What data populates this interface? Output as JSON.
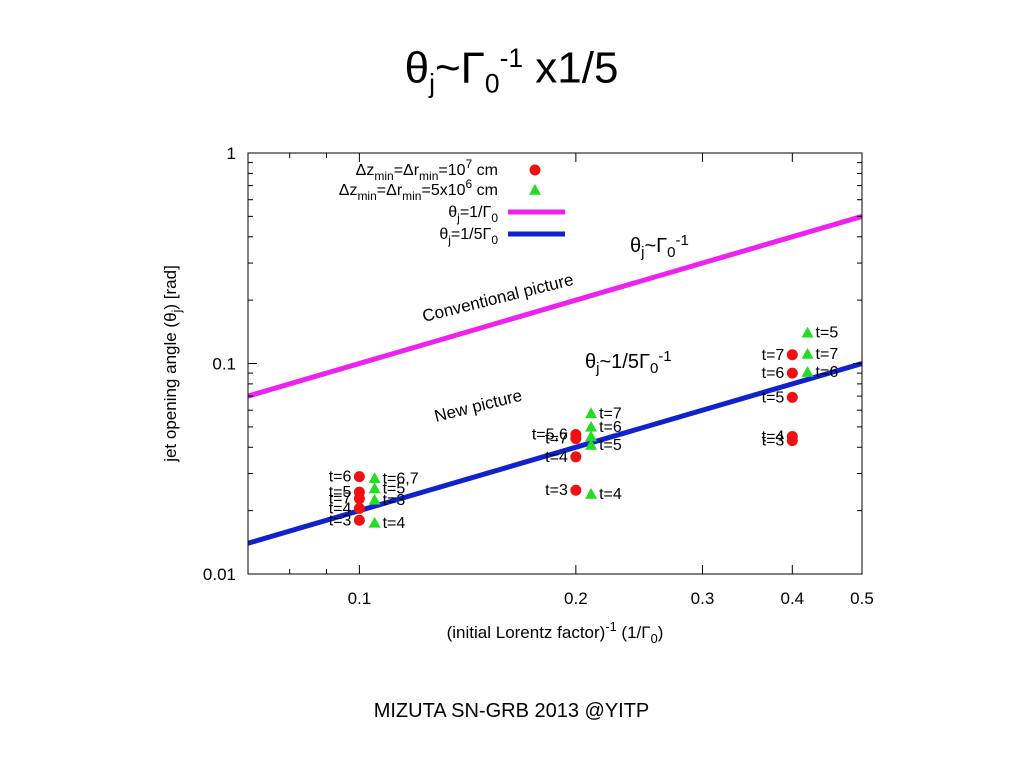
{
  "slide": {
    "title_main": "θ",
    "title_sub_j": "j",
    "title_tilde": "~Γ",
    "title_sub_0": "0",
    "title_sup": "-1",
    "title_tail": " x1/5",
    "footer": "MIZUTA SN-GRB 2013 @YITP"
  },
  "chart_data": {
    "type": "scatter",
    "xlabel": "(initial Lorentz factor)-1 (1/Γ0)",
    "ylabel": "jet opening angle (θj) [rad]",
    "xscale": "log",
    "yscale": "log",
    "xlim": [
      0.07,
      0.5
    ],
    "ylim": [
      0.01,
      1
    ],
    "x_ticks": [
      0.1,
      0.2,
      0.3,
      0.4,
      0.5
    ],
    "x_tick_labels": [
      "0.1",
      "0.2",
      "0.3",
      "0.4",
      "0.5"
    ],
    "y_ticks": [
      0.01,
      0.1,
      1
    ],
    "y_tick_labels": [
      "0.01",
      "0.1",
      "1"
    ],
    "legend_position": "top-left",
    "series": [
      {
        "name": "Δzmin=Δrmin=10^7 cm",
        "marker": "circle",
        "color": "#ee1111",
        "points": [
          {
            "x": 0.1,
            "y": 0.029,
            "label": "t=6"
          },
          {
            "x": 0.1,
            "y": 0.0245,
            "label": "t=5"
          },
          {
            "x": 0.1,
            "y": 0.0228,
            "label": "t=7"
          },
          {
            "x": 0.1,
            "y": 0.0205,
            "label": "t=4"
          },
          {
            "x": 0.1,
            "y": 0.018,
            "label": "t=3"
          },
          {
            "x": 0.2,
            "y": 0.046,
            "label": "t=5,6"
          },
          {
            "x": 0.2,
            "y": 0.044,
            "label": "t=7"
          },
          {
            "x": 0.2,
            "y": 0.036,
            "label": "t=4"
          },
          {
            "x": 0.2,
            "y": 0.025,
            "label": "t=3"
          },
          {
            "x": 0.4,
            "y": 0.11,
            "label": "t=7"
          },
          {
            "x": 0.4,
            "y": 0.09,
            "label": "t=6"
          },
          {
            "x": 0.4,
            "y": 0.069,
            "label": "t=5"
          },
          {
            "x": 0.4,
            "y": 0.045,
            "label": "t=4"
          },
          {
            "x": 0.4,
            "y": 0.043,
            "label": "t=3"
          }
        ]
      },
      {
        "name": "Δzmin=Δrmin=5x10^6 cm",
        "marker": "triangle",
        "color": "#22dd22",
        "points": [
          {
            "x": 0.105,
            "y": 0.0285,
            "label": "t=6,7"
          },
          {
            "x": 0.105,
            "y": 0.0255,
            "label": "t=5"
          },
          {
            "x": 0.105,
            "y": 0.0225,
            "label": "t=3"
          },
          {
            "x": 0.105,
            "y": 0.0175,
            "label": "t=4"
          },
          {
            "x": 0.21,
            "y": 0.058,
            "label": "t=7"
          },
          {
            "x": 0.21,
            "y": 0.05,
            "label": "t=6"
          },
          {
            "x": 0.21,
            "y": 0.045,
            "label": ""
          },
          {
            "x": 0.21,
            "y": 0.041,
            "label": "t=5"
          },
          {
            "x": 0.21,
            "y": 0.024,
            "label": "t=4"
          },
          {
            "x": 0.42,
            "y": 0.14,
            "label": "t=5"
          },
          {
            "x": 0.42,
            "y": 0.111,
            "label": "t=7"
          },
          {
            "x": 0.42,
            "y": 0.091,
            "label": "t=6"
          }
        ]
      },
      {
        "name": "θj=1/Γ0",
        "marker": "line",
        "color": "#ee22ee",
        "x": [
          0.07,
          0.5
        ],
        "y": [
          0.07,
          0.5
        ]
      },
      {
        "name": "θj=1/5Γ0",
        "marker": "line",
        "color": "#1122cc",
        "x": [
          0.07,
          0.5
        ],
        "y": [
          0.014,
          0.1
        ]
      }
    ],
    "annotations": [
      {
        "text": "Conventional picture"
      },
      {
        "text": "New picture"
      },
      {
        "text": "θj~Γ0-1"
      },
      {
        "text": "θj~1/5Γ0-1"
      }
    ]
  }
}
